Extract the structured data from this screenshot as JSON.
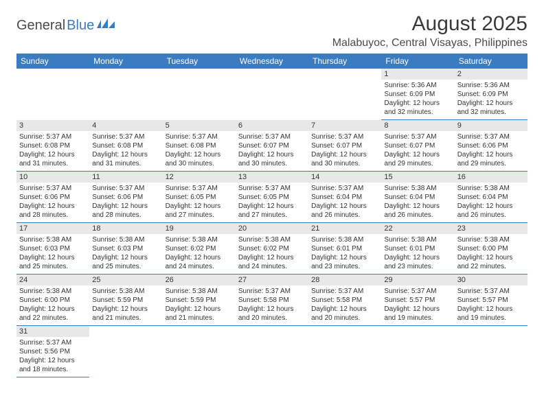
{
  "logo": {
    "part1": "General",
    "part2": "Blue"
  },
  "title": "August 2025",
  "subtitle": "Malabuyoc, Central Visayas, Philippines",
  "colors": {
    "header_bg": "#3b7bbf",
    "header_text": "#ffffff",
    "daynum_bg": "#e8e8e8",
    "row_border": "#3b7bbf",
    "text": "#333333"
  },
  "day_labels": [
    "Sunday",
    "Monday",
    "Tuesday",
    "Wednesday",
    "Thursday",
    "Friday",
    "Saturday"
  ],
  "weeks": [
    [
      null,
      null,
      null,
      null,
      null,
      {
        "n": "1",
        "sr": "5:36 AM",
        "ss": "6:09 PM",
        "dl": "12 hours and 32 minutes."
      },
      {
        "n": "2",
        "sr": "5:36 AM",
        "ss": "6:09 PM",
        "dl": "12 hours and 32 minutes."
      }
    ],
    [
      {
        "n": "3",
        "sr": "5:37 AM",
        "ss": "6:08 PM",
        "dl": "12 hours and 31 minutes."
      },
      {
        "n": "4",
        "sr": "5:37 AM",
        "ss": "6:08 PM",
        "dl": "12 hours and 31 minutes."
      },
      {
        "n": "5",
        "sr": "5:37 AM",
        "ss": "6:08 PM",
        "dl": "12 hours and 30 minutes."
      },
      {
        "n": "6",
        "sr": "5:37 AM",
        "ss": "6:07 PM",
        "dl": "12 hours and 30 minutes."
      },
      {
        "n": "7",
        "sr": "5:37 AM",
        "ss": "6:07 PM",
        "dl": "12 hours and 30 minutes."
      },
      {
        "n": "8",
        "sr": "5:37 AM",
        "ss": "6:07 PM",
        "dl": "12 hours and 29 minutes."
      },
      {
        "n": "9",
        "sr": "5:37 AM",
        "ss": "6:06 PM",
        "dl": "12 hours and 29 minutes."
      }
    ],
    [
      {
        "n": "10",
        "sr": "5:37 AM",
        "ss": "6:06 PM",
        "dl": "12 hours and 28 minutes."
      },
      {
        "n": "11",
        "sr": "5:37 AM",
        "ss": "6:06 PM",
        "dl": "12 hours and 28 minutes."
      },
      {
        "n": "12",
        "sr": "5:37 AM",
        "ss": "6:05 PM",
        "dl": "12 hours and 27 minutes."
      },
      {
        "n": "13",
        "sr": "5:37 AM",
        "ss": "6:05 PM",
        "dl": "12 hours and 27 minutes."
      },
      {
        "n": "14",
        "sr": "5:37 AM",
        "ss": "6:04 PM",
        "dl": "12 hours and 26 minutes."
      },
      {
        "n": "15",
        "sr": "5:38 AM",
        "ss": "6:04 PM",
        "dl": "12 hours and 26 minutes."
      },
      {
        "n": "16",
        "sr": "5:38 AM",
        "ss": "6:04 PM",
        "dl": "12 hours and 26 minutes."
      }
    ],
    [
      {
        "n": "17",
        "sr": "5:38 AM",
        "ss": "6:03 PM",
        "dl": "12 hours and 25 minutes."
      },
      {
        "n": "18",
        "sr": "5:38 AM",
        "ss": "6:03 PM",
        "dl": "12 hours and 25 minutes."
      },
      {
        "n": "19",
        "sr": "5:38 AM",
        "ss": "6:02 PM",
        "dl": "12 hours and 24 minutes."
      },
      {
        "n": "20",
        "sr": "5:38 AM",
        "ss": "6:02 PM",
        "dl": "12 hours and 24 minutes."
      },
      {
        "n": "21",
        "sr": "5:38 AM",
        "ss": "6:01 PM",
        "dl": "12 hours and 23 minutes."
      },
      {
        "n": "22",
        "sr": "5:38 AM",
        "ss": "6:01 PM",
        "dl": "12 hours and 23 minutes."
      },
      {
        "n": "23",
        "sr": "5:38 AM",
        "ss": "6:00 PM",
        "dl": "12 hours and 22 minutes."
      }
    ],
    [
      {
        "n": "24",
        "sr": "5:38 AM",
        "ss": "6:00 PM",
        "dl": "12 hours and 22 minutes."
      },
      {
        "n": "25",
        "sr": "5:38 AM",
        "ss": "5:59 PM",
        "dl": "12 hours and 21 minutes."
      },
      {
        "n": "26",
        "sr": "5:38 AM",
        "ss": "5:59 PM",
        "dl": "12 hours and 21 minutes."
      },
      {
        "n": "27",
        "sr": "5:37 AM",
        "ss": "5:58 PM",
        "dl": "12 hours and 20 minutes."
      },
      {
        "n": "28",
        "sr": "5:37 AM",
        "ss": "5:58 PM",
        "dl": "12 hours and 20 minutes."
      },
      {
        "n": "29",
        "sr": "5:37 AM",
        "ss": "5:57 PM",
        "dl": "12 hours and 19 minutes."
      },
      {
        "n": "30",
        "sr": "5:37 AM",
        "ss": "5:57 PM",
        "dl": "12 hours and 19 minutes."
      }
    ],
    [
      {
        "n": "31",
        "sr": "5:37 AM",
        "ss": "5:56 PM",
        "dl": "12 hours and 18 minutes."
      },
      null,
      null,
      null,
      null,
      null,
      null
    ]
  ],
  "labels": {
    "sunrise": "Sunrise:",
    "sunset": "Sunset:",
    "daylight": "Daylight:"
  }
}
